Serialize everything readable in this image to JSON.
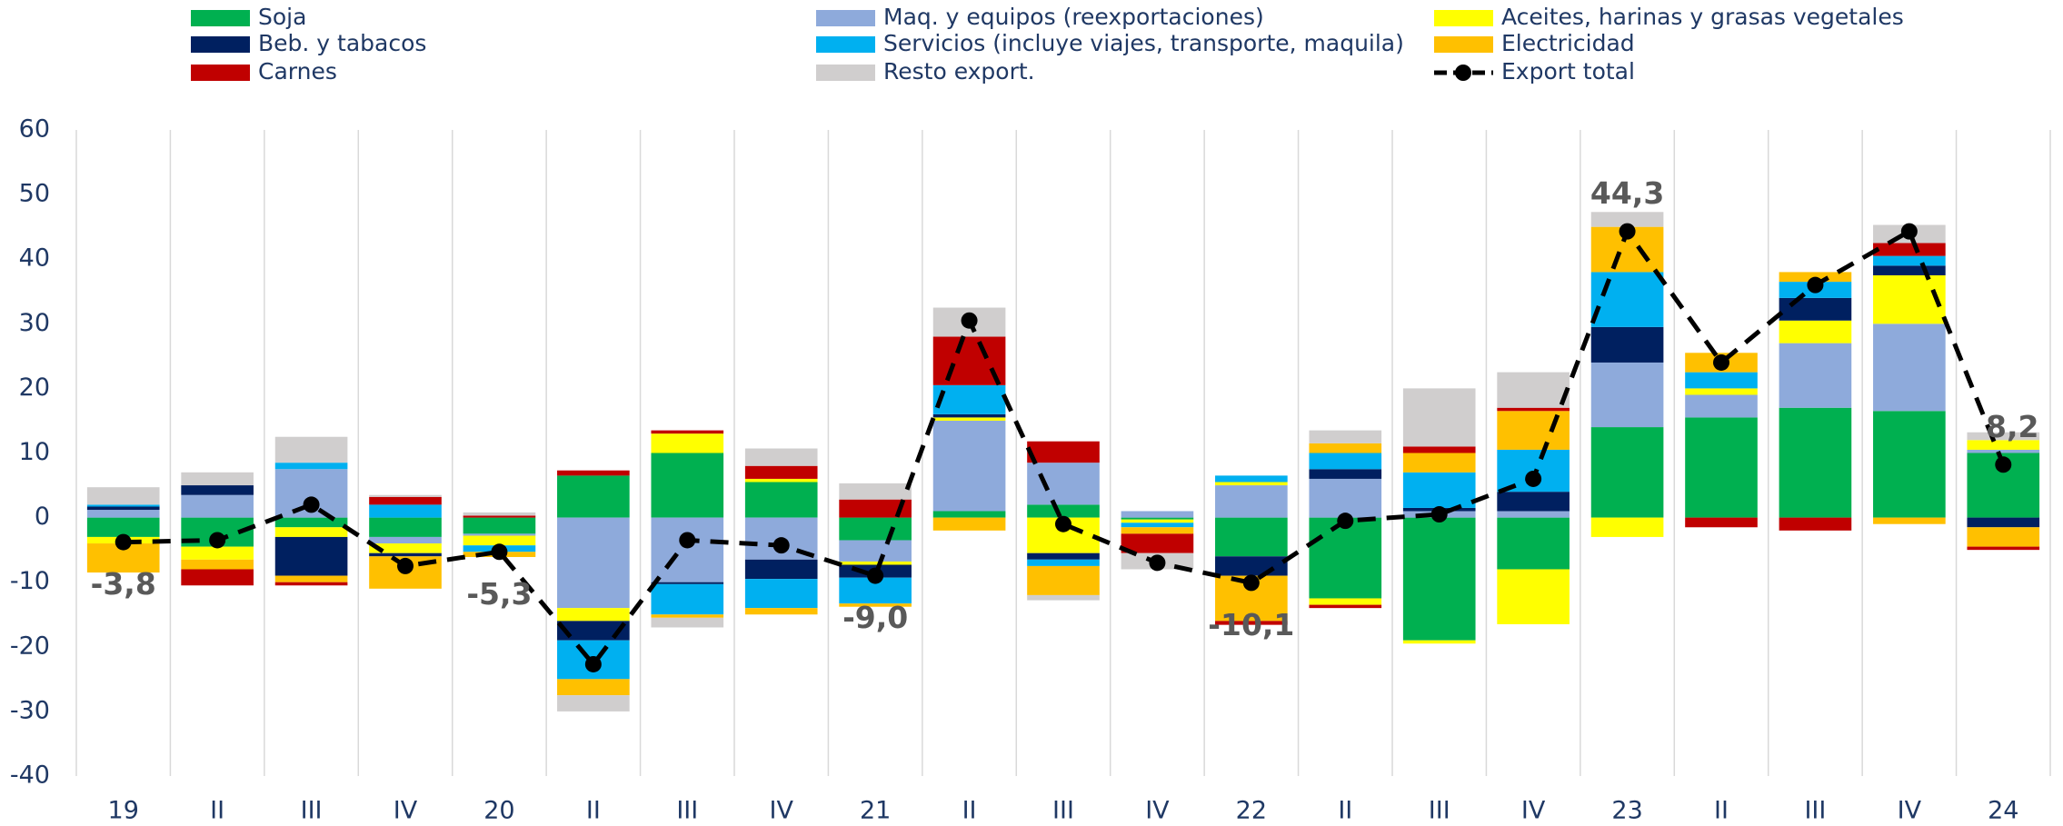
{
  "chart_data": {
    "type": "bar",
    "stacked": true,
    "categories": [
      "19",
      "II",
      "III",
      "IV",
      "20",
      "II",
      "III",
      "IV",
      "21",
      "II",
      "III",
      "IV",
      "22",
      "II",
      "III",
      "IV",
      "23",
      "II",
      "III",
      "IV",
      "24"
    ],
    "series": [
      {
        "name": "Soja",
        "color": "#00b050",
        "values": [
          -3,
          -4.5,
          -1.5,
          -3,
          -2.5,
          6.5,
          10,
          5.5,
          -3.5,
          1,
          2,
          -0.3,
          -6,
          -12.5,
          -19,
          -8,
          14,
          15.5,
          17,
          16.5,
          10
        ]
      },
      {
        "name": "Maq. y equipos (reexportaciones)",
        "color": "#8eaadb",
        "values": [
          1.2,
          3.5,
          7.5,
          -1,
          -0.3,
          -14,
          -10,
          -6.5,
          -3.3,
          14,
          6.5,
          1,
          5,
          6,
          1,
          1,
          10,
          3.5,
          10,
          13.5,
          0.5
        ]
      },
      {
        "name": "Aceites, harinas y grasas vegetales",
        "color": "#ffff00",
        "values": [
          -1,
          -2,
          -1.5,
          -1.5,
          -1.5,
          -2,
          3,
          0.5,
          -0.5,
          0.5,
          -5.5,
          -0.5,
          0.5,
          -1,
          -0.5,
          -8.5,
          -3,
          1,
          3.5,
          7.5,
          1.5
        ]
      },
      {
        "name": "Beb. y tabacos",
        "color": "#002060",
        "values": [
          0.5,
          1.5,
          -6,
          -0.5,
          0,
          -3,
          -0.3,
          -3,
          -2,
          0.5,
          -1,
          0,
          -3,
          1.5,
          0.5,
          3,
          5.5,
          0,
          3.5,
          1.5,
          -1.5
        ]
      },
      {
        "name": "Servicios (incluye viajes, transporte, maquila)",
        "color": "#00b0f0",
        "values": [
          0.3,
          0,
          1,
          2,
          -1,
          -6,
          -4.7,
          -4.5,
          -4,
          4.5,
          -1,
          -0.7,
          1,
          2.5,
          5.5,
          6.5,
          8.5,
          2.5,
          2.5,
          1.5,
          0
        ]
      },
      {
        "name": "Electricidad",
        "color": "#ffc000",
        "values": [
          -4.5,
          -1.5,
          -1,
          -5,
          -0.8,
          -2.5,
          -0.5,
          -1,
          -0.5,
          -2,
          -4.5,
          -1,
          -7,
          1.5,
          3,
          6,
          7,
          3,
          1.5,
          -1,
          -3
        ]
      },
      {
        "name": "Carnes",
        "color": "#c00000",
        "values": [
          0,
          -2.5,
          -0.5,
          1.2,
          0.3,
          0.8,
          0.5,
          2,
          2.8,
          7.5,
          3.3,
          -3,
          -0.6,
          -0.5,
          1,
          0.5,
          0,
          -1.5,
          -2,
          2,
          -0.5
        ]
      },
      {
        "name": "Resto export.",
        "color": "#d0cece",
        "values": [
          2.7,
          2,
          4,
          0.3,
          0.5,
          -2.5,
          -1.5,
          2.7,
          2.5,
          4.5,
          -0.8,
          -2.5,
          0,
          2,
          9,
          5.5,
          2.3,
          0,
          0,
          2.8,
          1.2
        ]
      }
    ],
    "line": {
      "name": "Export total",
      "color": "#000000",
      "values": [
        -3.8,
        -3.5,
        2,
        -7.5,
        -5.3,
        -22.7,
        -3.5,
        -4.3,
        -9,
        30.5,
        -1,
        -7,
        -10.1,
        -0.5,
        0.5,
        6,
        44.3,
        24,
        36,
        44.3,
        8.2
      ],
      "value_labels": [
        "-3,8",
        null,
        null,
        null,
        "-5,3",
        null,
        null,
        null,
        "-9,0",
        null,
        null,
        null,
        "-10,1",
        null,
        null,
        null,
        "44,3",
        null,
        null,
        null,
        "8,2"
      ]
    },
    "ylim": [
      -40,
      60
    ],
    "yticks": [
      -40,
      -30,
      -20,
      -10,
      0,
      10,
      20,
      30,
      40,
      50,
      60
    ]
  }
}
